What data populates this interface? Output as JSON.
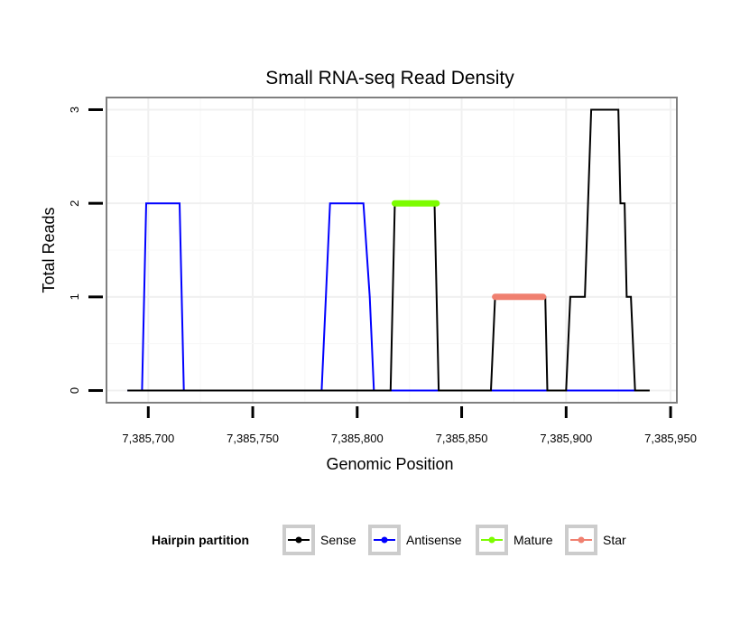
{
  "chart_data": {
    "type": "line",
    "title": "Small RNA-seq Read Density",
    "xlabel": "Genomic Position",
    "ylabel": "Total Reads",
    "xlim": [
      7385680,
      7385953
    ],
    "ylim": [
      -0.13,
      3.13
    ],
    "x_ticks": [
      7385700,
      7385750,
      7385800,
      7385850,
      7385900,
      7385950
    ],
    "x_tick_labels": [
      "7,385,700",
      "7,385,750",
      "7,385,800",
      "7,385,850",
      "7,385,900",
      "7,385,950"
    ],
    "y_ticks": [
      0,
      1,
      2,
      3
    ],
    "y_tick_labels": [
      "0",
      "1",
      "2",
      "3"
    ],
    "grid": true,
    "legend": {
      "title": "Hairpin partition",
      "placement": "bottom",
      "entries": [
        "Sense",
        "Antisense",
        "Mature",
        "Star"
      ]
    },
    "series": [
      {
        "name": "Antisense",
        "color": "#0000ff",
        "x": [
          7385690,
          7385697,
          7385699,
          7385715,
          7385717,
          7385783,
          7385785,
          7385787,
          7385803,
          7385806,
          7385808,
          7385938
        ],
        "y": [
          0,
          0,
          2,
          2,
          0,
          0,
          1,
          2,
          2,
          1,
          0,
          0
        ]
      },
      {
        "name": "Sense",
        "color": "#000000",
        "x": [
          7385690,
          7385816,
          7385818,
          7385837,
          7385839,
          7385864,
          7385866,
          7385890,
          7385891,
          7385900,
          7385902,
          7385909,
          7385912,
          7385925,
          7385926,
          7385928,
          7385929,
          7385931,
          7385933,
          7385940
        ],
        "y": [
          0,
          0,
          2,
          2,
          0,
          0,
          1,
          1,
          0,
          0,
          1,
          1,
          3,
          3,
          2,
          2,
          1,
          1,
          0,
          0
        ]
      },
      {
        "name": "Mature",
        "color": "#7cfc00",
        "x": [
          7385818,
          7385838
        ],
        "y": [
          2,
          2
        ]
      },
      {
        "name": "Star",
        "color": "#f08070",
        "x": [
          7385866,
          7385889
        ],
        "y": [
          1,
          1
        ]
      }
    ]
  }
}
